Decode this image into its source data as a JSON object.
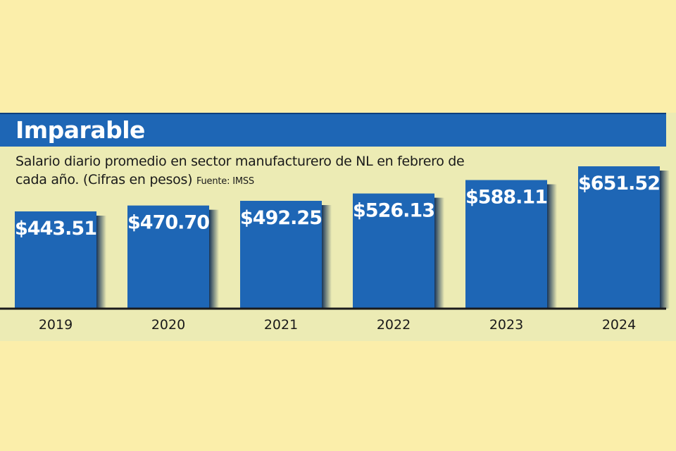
{
  "chart_data": {
    "type": "bar",
    "title": "Imparable",
    "subtitle": "Salario diario promedio en sector manufacturero de NL en febrero de cada año. (Cifras en pesos)",
    "source": "Fuente: IMSS",
    "categories": [
      "2019",
      "2020",
      "2021",
      "2022",
      "2023",
      "2024"
    ],
    "values": [
      443.51,
      470.7,
      492.25,
      526.13,
      588.11,
      651.52
    ],
    "labels": [
      "$443.51",
      "$470.70",
      "$492.25",
      "$526.13",
      "$588.11",
      "$651.52"
    ],
    "xlabel": "",
    "ylabel": "",
    "ylim": [
      0,
      651.52
    ],
    "grid": false,
    "legend": "none",
    "colors": {
      "bar": "#1e66b5",
      "bar_shadow": "#0c2a52",
      "title_bar": "#1e66b5",
      "panel": "#ecebb4",
      "background": "#fbeeaa",
      "baseline": "#1a1a1a"
    }
  }
}
